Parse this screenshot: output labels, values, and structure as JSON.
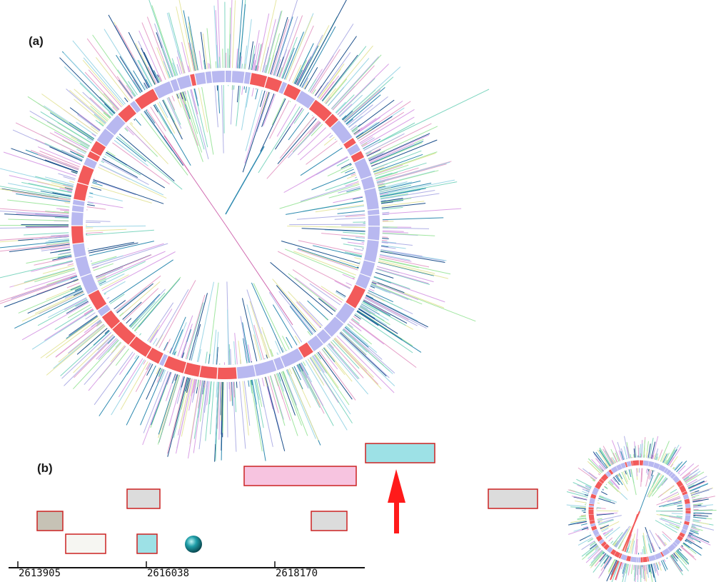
{
  "panels": {
    "a": {
      "label": "(a)"
    },
    "b": {
      "label": "(b)"
    }
  },
  "track": {
    "ticks": [
      "2613905",
      "2616038",
      "2618170"
    ]
  },
  "colors": {
    "ring_red": "#f25a5a",
    "ring_lavender": "#b8b8f0",
    "feature_outline": "#cc2222",
    "arrow": "#ff1a1a",
    "pink_feature": "#f7c4e0",
    "cyan_feature": "#9de1e6",
    "gray_feature": "#dcdcdc",
    "taupe_feature": "#c6c2b5",
    "white_feature": "#f6f6f2",
    "spike_palette": [
      "#d9a0e6",
      "#1a4e8a",
      "#a0e6a0",
      "#9cd6e6",
      "#e6e6a0",
      "#e6a0c8",
      "#2e8ab0",
      "#b0b0e6",
      "#7fd6c0"
    ]
  },
  "icons": {
    "sphere": "sphere-icon",
    "arrow": "up-arrow-icon"
  }
}
